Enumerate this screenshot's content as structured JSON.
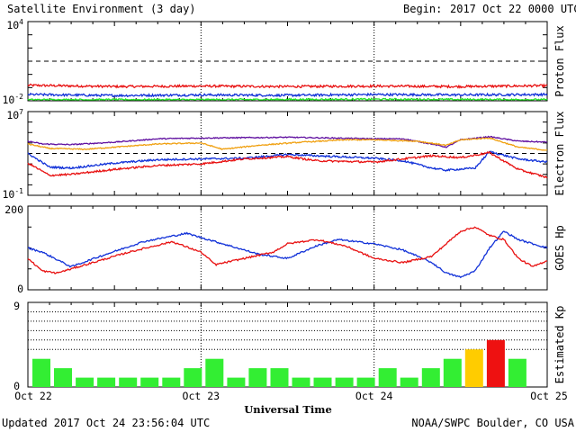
{
  "header": {
    "title": "Satellite Environment (3 day)",
    "begin_label": "Begin:",
    "begin_value": "2017 Oct 22 0000 UTC"
  },
  "footer": {
    "updated": "Updated 2017 Oct 24 23:56:04 UTC",
    "credit": "NOAA/SWPC Boulder, CO USA",
    "xlabel": "Universal Time"
  },
  "colors": {
    "red": "#e81010",
    "blue": "#1030d8",
    "green": "#20e020",
    "orange": "#f0a010",
    "purple": "#6010a0",
    "kp_green": "#33ee33",
    "kp_yellow": "#ffcc00",
    "kp_red": "#ee1111"
  },
  "chart_data": [
    {
      "id": "proton",
      "type": "line",
      "ylabel": "Proton Flux",
      "yscale": "log",
      "ylim_exp": [
        -2,
        4
      ],
      "tick_base": "10",
      "tick_exp": [
        "4",
        "-2"
      ],
      "threshold": 10,
      "xlim_hours": [
        0,
        72
      ],
      "x_tick_labels": [
        "Oct 22",
        "Oct 23",
        "Oct 24",
        "Oct 25"
      ],
      "series": [
        {
          "color": "#e81010",
          "points": [
            [
              0,
              0.15
            ],
            [
              12,
              0.12
            ],
            [
              24,
              0.13
            ],
            [
              36,
              0.12
            ],
            [
              48,
              0.13
            ],
            [
              60,
              0.12
            ],
            [
              72,
              0.14
            ]
          ],
          "noise": 0.5
        },
        {
          "color": "#1030d8",
          "points": [
            [
              0,
              0.03
            ],
            [
              12,
              0.025
            ],
            [
              24,
              0.028
            ],
            [
              36,
              0.026
            ],
            [
              48,
              0.03
            ],
            [
              60,
              0.028
            ],
            [
              72,
              0.03
            ]
          ],
          "noise": 0.5
        },
        {
          "color": "#20e020",
          "points": [
            [
              0,
              0.012
            ],
            [
              24,
              0.012
            ],
            [
              48,
              0.013
            ],
            [
              72,
              0.012
            ]
          ],
          "noise": 0.4
        }
      ]
    },
    {
      "id": "electron",
      "type": "line",
      "ylabel": "Electron Flux",
      "yscale": "log",
      "ylim_exp": [
        -1,
        7
      ],
      "tick_base": "10",
      "tick_exp": [
        "7",
        "-1"
      ],
      "threshold": 1000,
      "xlim_hours": [
        0,
        72
      ],
      "x_tick_labels": [
        "Oct 22",
        "Oct 23",
        "Oct 24",
        "Oct 25"
      ],
      "series": [
        {
          "color": "#6010a0",
          "points": [
            [
              0,
              15000
            ],
            [
              2,
              8000
            ],
            [
              6,
              7000
            ],
            [
              12,
              12000
            ],
            [
              18,
              25000
            ],
            [
              24,
              30000
            ],
            [
              30,
              32000
            ],
            [
              36,
              35000
            ],
            [
              42,
              30000
            ],
            [
              48,
              25000
            ],
            [
              52,
              25000
            ],
            [
              56,
              8000
            ],
            [
              58,
              4000
            ],
            [
              60,
              20000
            ],
            [
              64,
              40000
            ],
            [
              68,
              15000
            ],
            [
              72,
              12000
            ]
          ],
          "noise": 0.3
        },
        {
          "color": "#f0a010",
          "points": [
            [
              0,
              8000
            ],
            [
              3,
              3000
            ],
            [
              8,
              2500
            ],
            [
              12,
              4000
            ],
            [
              18,
              8000
            ],
            [
              24,
              10000
            ],
            [
              27,
              2500
            ],
            [
              32,
              6000
            ],
            [
              38,
              12000
            ],
            [
              44,
              20000
            ],
            [
              48,
              20000
            ],
            [
              54,
              15000
            ],
            [
              58,
              6000
            ],
            [
              60,
              20000
            ],
            [
              64,
              30000
            ],
            [
              68,
              4000
            ],
            [
              72,
              2000
            ]
          ],
          "noise": 0.3
        },
        {
          "color": "#1030d8",
          "points": [
            [
              0,
              1000
            ],
            [
              3,
              50
            ],
            [
              6,
              40
            ],
            [
              12,
              120
            ],
            [
              18,
              250
            ],
            [
              24,
              300
            ],
            [
              30,
              350
            ],
            [
              36,
              800
            ],
            [
              40,
              600
            ],
            [
              48,
              350
            ],
            [
              52,
              200
            ],
            [
              56,
              40
            ],
            [
              58,
              25
            ],
            [
              62,
              40
            ],
            [
              64,
              1500
            ],
            [
              68,
              300
            ],
            [
              72,
              150
            ]
          ],
          "noise": 0.5
        },
        {
          "color": "#e81010",
          "points": [
            [
              0,
              120
            ],
            [
              3,
              8
            ],
            [
              6,
              10
            ],
            [
              12,
              30
            ],
            [
              18,
              70
            ],
            [
              24,
              100
            ],
            [
              30,
              300
            ],
            [
              36,
              500
            ],
            [
              40,
              200
            ],
            [
              48,
              150
            ],
            [
              52,
              300
            ],
            [
              56,
              600
            ],
            [
              60,
              400
            ],
            [
              64,
              1200
            ],
            [
              68,
              30
            ],
            [
              72,
              5
            ]
          ],
          "noise": 0.5
        }
      ]
    },
    {
      "id": "goes_hp",
      "type": "line",
      "ylabel": "GOES Hp",
      "ylim": [
        0,
        200
      ],
      "y_tick_labels": [
        "200",
        "0"
      ],
      "xlim_hours": [
        0,
        72
      ],
      "x_tick_labels": [
        "Oct 22",
        "Oct 23",
        "Oct 24",
        "Oct 25"
      ],
      "series": [
        {
          "color": "#1030d8",
          "points": [
            [
              0,
              100
            ],
            [
              2,
              90
            ],
            [
              6,
              55
            ],
            [
              10,
              80
            ],
            [
              16,
              115
            ],
            [
              22,
              135
            ],
            [
              24,
              125
            ],
            [
              27,
              110
            ],
            [
              32,
              85
            ],
            [
              36,
              75
            ],
            [
              40,
              105
            ],
            [
              43,
              120
            ],
            [
              48,
              110
            ],
            [
              52,
              95
            ],
            [
              56,
              65
            ],
            [
              58,
              40
            ],
            [
              60,
              30
            ],
            [
              62,
              45
            ],
            [
              64,
              100
            ],
            [
              66,
              140
            ],
            [
              68,
              120
            ],
            [
              70,
              110
            ],
            [
              72,
              100
            ]
          ],
          "noise": 4
        },
        {
          "color": "#e81010",
          "points": [
            [
              0,
              75
            ],
            [
              2,
              45
            ],
            [
              4,
              40
            ],
            [
              8,
              60
            ],
            [
              14,
              90
            ],
            [
              20,
              115
            ],
            [
              24,
              90
            ],
            [
              26,
              60
            ],
            [
              30,
              75
            ],
            [
              34,
              90
            ],
            [
              36,
              110
            ],
            [
              40,
              120
            ],
            [
              44,
              105
            ],
            [
              48,
              75
            ],
            [
              52,
              65
            ],
            [
              56,
              80
            ],
            [
              58,
              110
            ],
            [
              60,
              140
            ],
            [
              62,
              150
            ],
            [
              64,
              130
            ],
            [
              66,
              120
            ],
            [
              68,
              75
            ],
            [
              70,
              55
            ],
            [
              72,
              70
            ]
          ],
          "noise": 4
        }
      ]
    },
    {
      "id": "kp",
      "type": "bar",
      "ylabel": "Estimated Kp",
      "ylim": [
        0,
        9
      ],
      "y_tick_labels": [
        "9",
        "0"
      ],
      "x_tick_labels": [
        "Oct 22",
        "Oct 23",
        "Oct 24",
        "Oct 25"
      ],
      "values": [
        3,
        2,
        1,
        1,
        1,
        1,
        1,
        2,
        3,
        1,
        2,
        2,
        1,
        1,
        1,
        1,
        2,
        1,
        2,
        3,
        4,
        5,
        3
      ],
      "bar_colors": [
        "#33ee33",
        "#33ee33",
        "#33ee33",
        "#33ee33",
        "#33ee33",
        "#33ee33",
        "#33ee33",
        "#33ee33",
        "#33ee33",
        "#33ee33",
        "#33ee33",
        "#33ee33",
        "#33ee33",
        "#33ee33",
        "#33ee33",
        "#33ee33",
        "#33ee33",
        "#33ee33",
        "#33ee33",
        "#33ee33",
        "#ffcc00",
        "#ee1111",
        "#33ee33"
      ]
    }
  ]
}
